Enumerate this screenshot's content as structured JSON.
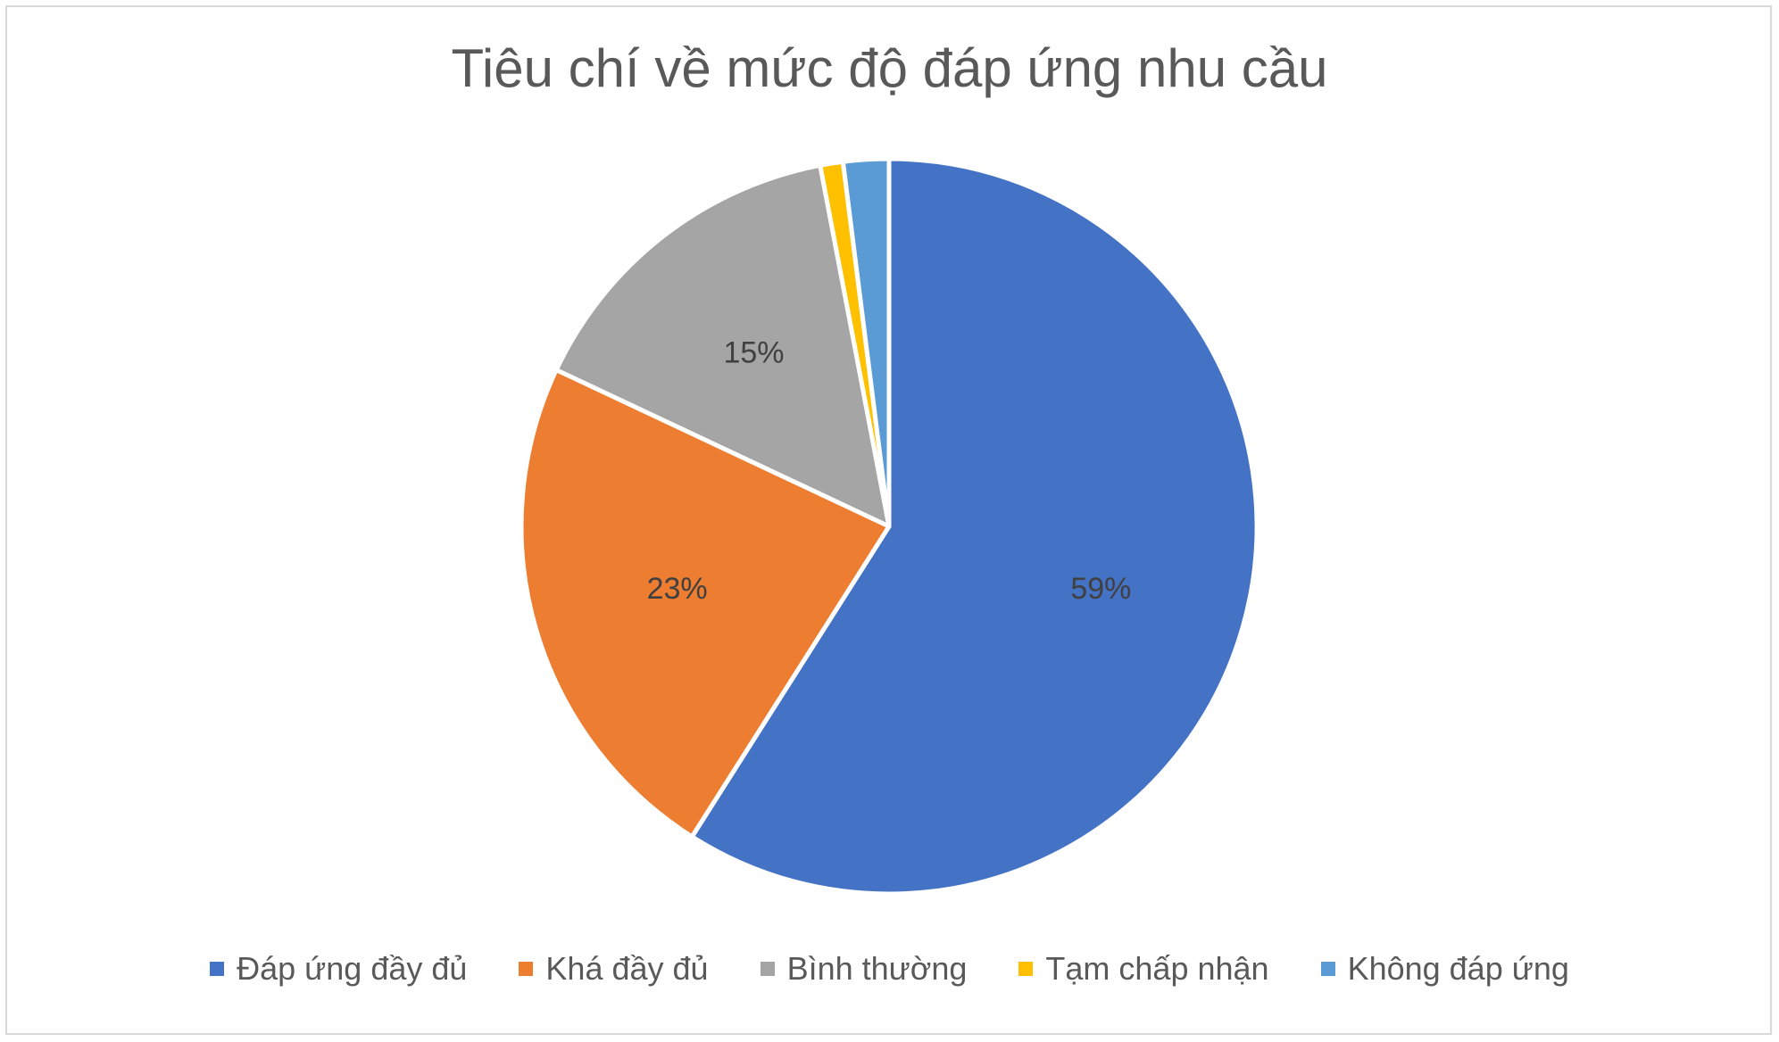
{
  "chart_data": {
    "type": "pie",
    "title": "Tiêu chí về mức độ đáp ứng nhu cầu",
    "categories": [
      "Đáp ứng đầy đủ",
      "Khá đầy đủ",
      "Bình thường",
      "Tạm chấp nhận",
      "Không đáp ứng"
    ],
    "values": [
      59,
      23,
      15,
      1,
      2
    ],
    "data_labels": [
      "59%",
      "23%",
      "15%",
      "",
      ""
    ],
    "colors": [
      "#4472c4",
      "#ed7d31",
      "#a5a5a5",
      "#ffc000",
      "#5b9bd5"
    ],
    "legend_position": "bottom"
  }
}
